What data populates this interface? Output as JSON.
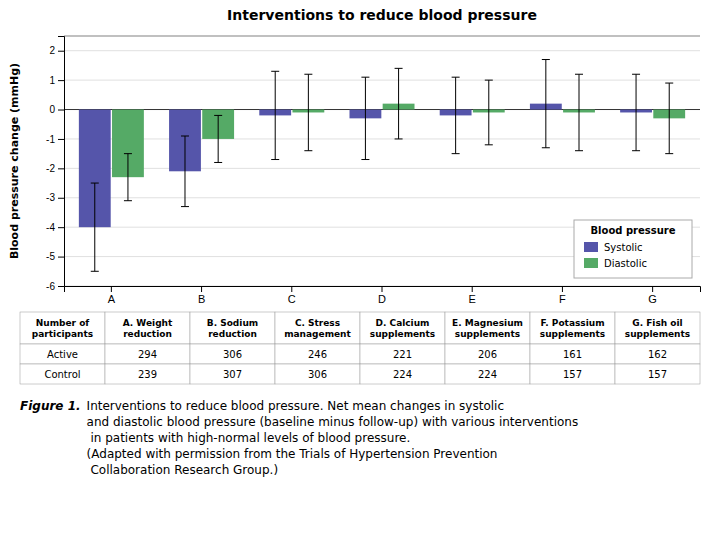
{
  "chart_data": {
    "type": "bar",
    "title": "Interventions to reduce blood pressure",
    "categories": [
      "A",
      "B",
      "C",
      "D",
      "E",
      "F",
      "G"
    ],
    "series": [
      {
        "name": "Systolic",
        "color": "#5555aa",
        "values": [
          -4.0,
          -2.1,
          -0.2,
          -0.3,
          -0.2,
          0.2,
          -0.1
        ],
        "errors_low": [
          1.5,
          1.2,
          1.5,
          1.4,
          1.3,
          1.5,
          1.3
        ],
        "errors_high": [
          1.5,
          1.2,
          1.5,
          1.4,
          1.3,
          1.5,
          1.3
        ]
      },
      {
        "name": "Diastolic",
        "color": "#55aa66",
        "values": [
          -2.3,
          -1.0,
          -0.1,
          0.2,
          -0.1,
          -0.1,
          -0.3
        ],
        "errors_low": [
          0.8,
          0.8,
          1.3,
          1.2,
          1.1,
          1.3,
          1.2
        ],
        "errors_high": [
          0.8,
          0.8,
          1.3,
          1.2,
          1.1,
          1.3,
          1.2
        ]
      }
    ],
    "ylabel": "Blood pressure change (mmHg)",
    "ylim": [
      -6,
      2.5
    ],
    "yticks": [
      -6,
      -5,
      -4,
      -3,
      -2,
      -1,
      0,
      1,
      2
    ],
    "grid": true,
    "legend": "lower right",
    "legend_title": "Blood pressure",
    "table": {
      "header": [
        "Number of\nparticipants",
        "A. Weight\nreduction",
        "B. Sodium\nreduction",
        "C. Stress\nmanagement",
        "D. Calcium\nsupplements",
        "E. Magnesium\nsupplements",
        "F. Potassium\nsupplements",
        "G. Fish oil\nsupplements"
      ],
      "rows": [
        [
          "Active",
          "294",
          "306",
          "246",
          "221",
          "206",
          "161",
          "162"
        ],
        [
          "Control",
          "239",
          "307",
          "306",
          "224",
          "224",
          "157",
          "157"
        ]
      ]
    },
    "caption_label": "Figure 1.",
    "caption": "  Interventions to reduce blood pressure. Net mean changes in systolic\nand diastolic blood pressure (baseline minus follow-up) with various interventions\n in patients with high-normal levels of blood pressure.\n(Adapted with permission from the Trials of Hypertension Prevention\n Collaboration Research Group.)"
  }
}
